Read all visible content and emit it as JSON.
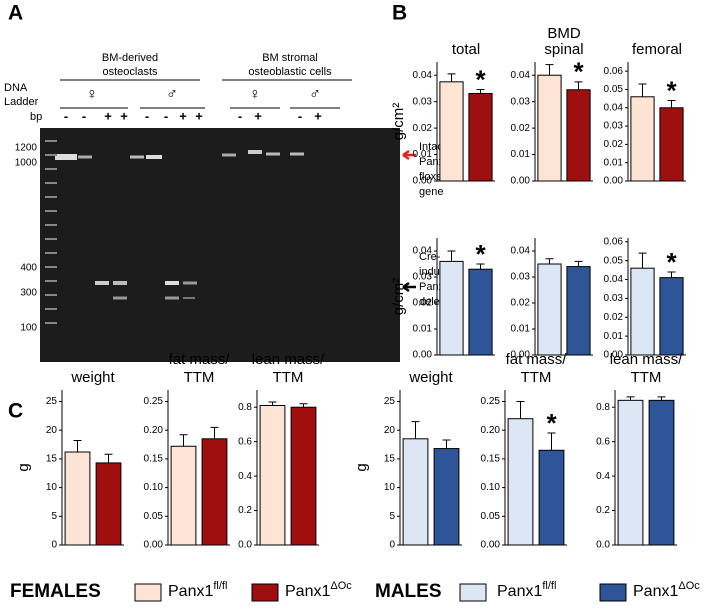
{
  "panels": [
    "A",
    "B",
    "C"
  ],
  "gel": {
    "group1": [
      "BM-derived",
      "osteoclasts"
    ],
    "group2": [
      "BM stromal",
      "osteoblastic cells"
    ],
    "ladder": [
      "DNA",
      "Ladder"
    ],
    "bp": "bp",
    "sexes": [
      "♀",
      "♂",
      "♀",
      "♂"
    ],
    "lanes": [
      "-",
      "-",
      "+",
      "+",
      "-",
      "-",
      "+",
      "+",
      "-",
      "+",
      "-",
      "+"
    ],
    "sizes": [
      1200,
      1000,
      400,
      300,
      100
    ],
    "intact": [
      "Intact",
      "Panx1",
      "floxed",
      "gene"
    ],
    "deletion": [
      "Cre-",
      "induced",
      "Panx1",
      "deletion"
    ]
  },
  "bmd_label": "BMD",
  "chart_data": [
    {
      "type": "bar",
      "title": [
        "total"
      ],
      "ylabel": "g/cm²",
      "ylim": [
        0,
        0.045
      ],
      "yticks": [
        {
          "value": 0,
          "label": "0.00"
        },
        0.01,
        0.02,
        0.03,
        0.04
      ],
      "values": [
        0.0375,
        0.0331
      ],
      "errors": [
        0.003,
        0.0015
      ],
      "colors": [
        "#fde4d4",
        "#a00f10"
      ],
      "annotations": [
        null,
        "*"
      ]
    },
    {
      "type": "bar",
      "title": [
        "spinal"
      ],
      "ylim": [
        0,
        0.045
      ],
      "yticks": [
        {
          "value": 0,
          "label": "0.00"
        },
        0.01,
        0.02,
        0.03,
        0.04
      ],
      "values": [
        0.04,
        0.0345
      ],
      "errors": [
        0.004,
        0.003
      ],
      "colors": [
        "#fde4d4",
        "#a00f10"
      ],
      "annotations": [
        null,
        "*"
      ]
    },
    {
      "type": "bar",
      "title": [
        "femoral"
      ],
      "ylim": [
        0,
        0.065
      ],
      "yticks": [
        {
          "value": 0,
          "label": "0.00"
        },
        0.01,
        0.02,
        0.03,
        0.04,
        0.05,
        0.06
      ],
      "values": [
        0.046,
        0.04
      ],
      "errors": [
        0.007,
        0.004
      ],
      "colors": [
        "#fde4d4",
        "#a00f10"
      ],
      "annotations": [
        null,
        "*"
      ]
    },
    {
      "type": "bar",
      "ylabel": "g/cm²",
      "ylim": [
        0,
        0.045
      ],
      "yticks": [
        {
          "value": 0,
          "label": "0.00"
        },
        0.01,
        0.02,
        0.03,
        0.04
      ],
      "values": [
        0.036,
        0.033
      ],
      "errors": [
        0.004,
        0.002
      ],
      "colors": [
        "#dce6f5",
        "#2e5597"
      ],
      "annotations": [
        null,
        "*"
      ]
    },
    {
      "type": "bar",
      "ylim": [
        0,
        0.045
      ],
      "yticks": [
        {
          "value": 0,
          "label": "0.00"
        },
        0.01,
        0.02,
        0.03,
        0.04
      ],
      "values": [
        0.035,
        0.034
      ],
      "errors": [
        0.002,
        0.002
      ],
      "colors": [
        "#dce6f5",
        "#2e5597"
      ],
      "annotations": [
        null,
        null
      ]
    },
    {
      "type": "bar",
      "ylim": [
        0,
        0.062
      ],
      "yticks": [
        {
          "value": 0,
          "label": "0.00"
        },
        0.01,
        0.02,
        0.03,
        0.04,
        0.05,
        0.06
      ],
      "values": [
        0.046,
        0.041
      ],
      "errors": [
        0.008,
        0.003
      ],
      "colors": [
        "#dce6f5",
        "#2e5597"
      ],
      "annotations": [
        null,
        "*"
      ]
    },
    {
      "type": "bar",
      "title": [
        "weight"
      ],
      "ylabel": "g",
      "ylim": [
        0,
        27
      ],
      "yticks": [
        0,
        5,
        10,
        15,
        20,
        25
      ],
      "values": [
        16.2,
        14.3
      ],
      "errors": [
        2,
        1.5
      ],
      "colors": [
        "#fde4d4",
        "#a00f10"
      ],
      "annotations": [
        null,
        null
      ]
    },
    {
      "type": "bar",
      "title": [
        "fat mass/",
        "TTM"
      ],
      "ylim": [
        0,
        0.27
      ],
      "yticks": [
        {
          "value": 0,
          "label": "0.00"
        },
        0.05,
        {
          "value": 0.1,
          "label": "0.10"
        },
        0.15,
        {
          "value": 0.2,
          "label": "0.20"
        },
        0.25
      ],
      "values": [
        0.172,
        0.185
      ],
      "errors": [
        0.02,
        0.02
      ],
      "colors": [
        "#fde4d4",
        "#a00f10"
      ],
      "annotations": [
        null,
        null
      ]
    },
    {
      "type": "bar",
      "title": [
        "lean mass/",
        "TTM"
      ],
      "ylim": [
        0,
        0.9
      ],
      "yticks": [
        {
          "value": 0,
          "label": "0.0"
        },
        0.2,
        0.4,
        0.6,
        0.8
      ],
      "values": [
        0.81,
        0.8
      ],
      "errors": [
        0.02,
        0.02
      ],
      "colors": [
        "#fde4d4",
        "#a00f10"
      ],
      "annotations": [
        null,
        null
      ]
    },
    {
      "type": "bar",
      "title": [
        "weight"
      ],
      "ylabel": "g",
      "ylim": [
        0,
        27
      ],
      "yticks": [
        0,
        5,
        10,
        15,
        20,
        25
      ],
      "values": [
        18.5,
        16.8
      ],
      "errors": [
        3,
        1.5
      ],
      "colors": [
        "#dce6f5",
        "#2e5597"
      ],
      "annotations": [
        null,
        null
      ]
    },
    {
      "type": "bar",
      "title": [
        "fat mass/",
        "TTM"
      ],
      "ylim": [
        0,
        0.27
      ],
      "yticks": [
        {
          "value": 0,
          "label": "0.00"
        },
        0.05,
        {
          "value": 0.1,
          "label": "0.10"
        },
        0.15,
        {
          "value": 0.2,
          "label": "0.20"
        },
        0.25
      ],
      "values": [
        0.22,
        0.165
      ],
      "errors": [
        0.03,
        0.03
      ],
      "colors": [
        "#dce6f5",
        "#2e5597"
      ],
      "annotations": [
        null,
        "*"
      ]
    },
    {
      "type": "bar",
      "title": [
        "lean mass/",
        "TTM"
      ],
      "ylim": [
        0,
        0.9
      ],
      "yticks": [
        {
          "value": 0,
          "label": "0.0"
        },
        0.2,
        0.4,
        0.6,
        0.8
      ],
      "values": [
        0.84,
        0.84
      ],
      "errors": [
        0.02,
        0.02
      ],
      "colors": [
        "#dce6f5",
        "#2e5597"
      ],
      "annotations": [
        null,
        null
      ]
    }
  ],
  "legend": [
    {
      "label": "FEMALES",
      "items": [
        {
          "text": "Panx1",
          "sup": "fl/fl",
          "color": "#fde4d4"
        },
        {
          "text": "Panx1",
          "sup": "ΔOc",
          "color": "#a00f10"
        }
      ]
    },
    {
      "label": "MALES",
      "items": [
        {
          "text": "Panx1",
          "sup": "fl/fl",
          "color": "#dce6f5"
        },
        {
          "text": "Panx1",
          "sup": "ΔOc",
          "color": "#2e5597"
        }
      ]
    }
  ]
}
